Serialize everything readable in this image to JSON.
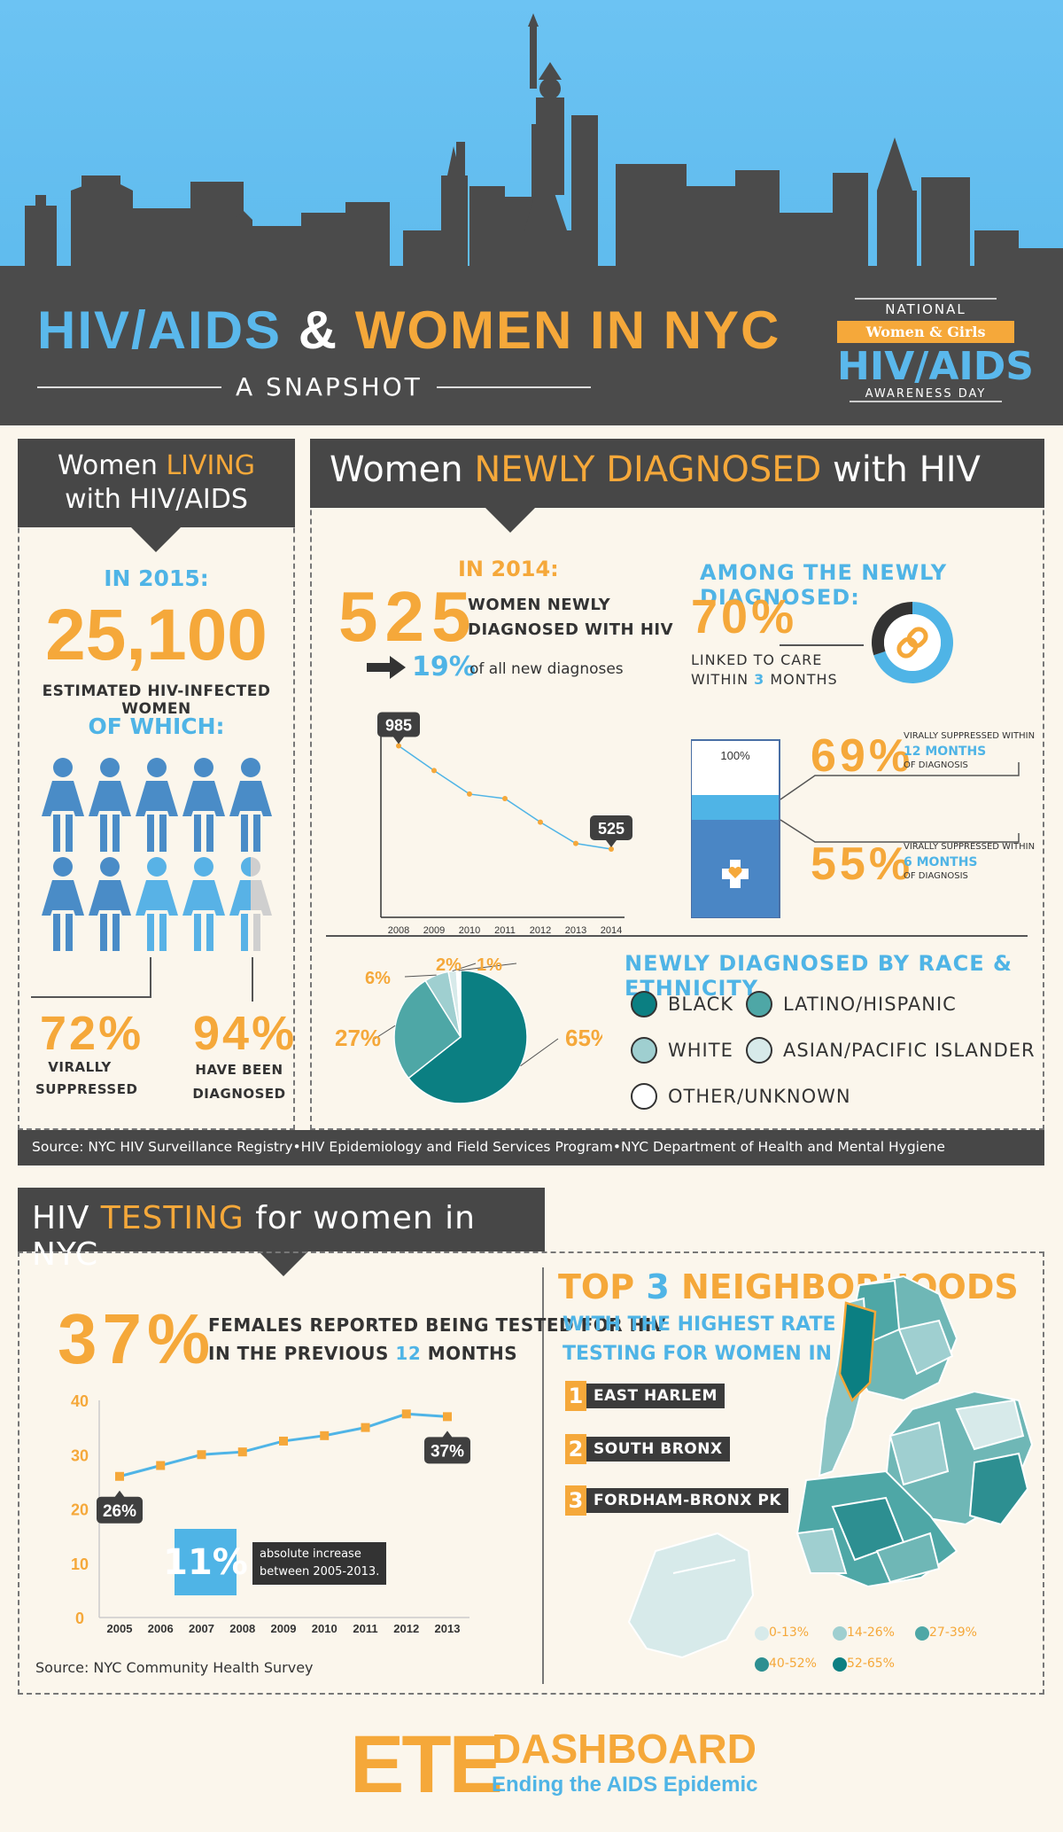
{
  "colors": {
    "orange": "#f5a83a",
    "blue": "#4fb4e6",
    "dark": "#474747",
    "teal_dark": "#0b7f82",
    "teal_mid": "#4ea7a6",
    "teal_light": "#9fcfd0",
    "teal_pale": "#d7eaea",
    "cream": "#fbf6ec"
  },
  "header": {
    "title_part1": "HIV/AIDS",
    "title_amp": "&",
    "title_part2": "WOMEN IN NYC",
    "subtitle": "A SNAPSHOT",
    "badge_national": "NATIONAL",
    "badge_ribbon": "Women & Girls",
    "badge_big": "HIV/AIDS",
    "badge_day": "AWARENESS DAY"
  },
  "living": {
    "title_a": "Women ",
    "title_b": "LIVING",
    "title_c": "with HIV/AIDS",
    "year_label": "IN 2015:",
    "total": "25,100",
    "total_desc": "ESTIMATED HIV-INFECTED WOMEN",
    "of_which": "OF WHICH:",
    "stat1_value": "72%",
    "stat1_label_a": "VIRALLY",
    "stat1_label_b": "SUPPRESSED",
    "stat2_value": "94%",
    "stat2_label_a": "HAVE BEEN",
    "stat2_label_b": "DIAGNOSED"
  },
  "newly": {
    "title_a": "Women ",
    "title_b": "NEWLY DIAGNOSED",
    "title_c": " with HIV",
    "year_label": "IN 2014:",
    "count": "525",
    "count_desc_a": "WOMEN NEWLY",
    "count_desc_b": "DIAGNOSED WITH HIV",
    "share_value": "19%",
    "share_label": "of all new diagnoses",
    "among_title": "AMONG THE NEWLY DIAGNOSED:",
    "linked_value": "70%",
    "linked_label_a": "LINKED TO CARE",
    "linked_label_b": "WITHIN ",
    "linked_label_num": "3",
    "linked_label_c": " MONTHS",
    "bar_top_label": "100%",
    "vs12_value": "69%",
    "vs12_label_a": "VIRALLY SUPPRESSED WITHIN",
    "vs12_label_b": "12 MONTHS",
    "vs12_label_c": "OF DIAGNOSIS",
    "vs6_value": "55%",
    "vs6_label_a": "VIRALLY SUPPRESSED WITHIN",
    "vs6_label_b": "6 MONTHS",
    "vs6_label_c": "OF DIAGNOSIS",
    "race_title": "NEWLY DIAGNOSED BY RACE & ETHNICITY",
    "race_legend": [
      "BLACK",
      "LATINO/HISPANIC",
      "WHITE",
      "ASIAN/PACIFIC ISLANDER",
      "OTHER/UNKNOWN"
    ],
    "source": "Source: NYC HIV Surveillance Registry•HIV Epidemiology and Field Services Program•NYC Department of Health and Mental Hygiene"
  },
  "testing": {
    "title_a": "HIV ",
    "title_b": "TESTING",
    "title_c": " for women in NYC",
    "pct": "37%",
    "pct_desc_a": "FEMALES REPORTED BEING TESTED FOR HIV",
    "pct_desc_b": "IN THE PREVIOUS ",
    "pct_desc_num": "12",
    "pct_desc_c": " MONTHS",
    "increase_value": "11%",
    "increase_label_a": "absolute increase",
    "increase_label_b": "between 2005-2013.",
    "source": "Source: NYC Community Health Survey",
    "hoods_title_a": "TOP ",
    "hoods_title_num": "3",
    "hoods_title_b": " NEIGHBORHOODS",
    "hoods_sub_a": "WITH THE HIGHEST RATE OF HIV",
    "hoods_sub_b": "TESTING FOR WOMEN IN NYC",
    "hoods": [
      {
        "n": "1",
        "label": "EAST HARLEM"
      },
      {
        "n": "2",
        "label": "SOUTH BRONX"
      },
      {
        "n": "3",
        "label": "FORDHAM-BRONX PK"
      }
    ],
    "map_legend": [
      "0-13%",
      "14-26%",
      "27-39%",
      "40-52%",
      "52-65%"
    ]
  },
  "footer": {
    "logo_ete": "ETE",
    "logo_dash": "DASHBOARD",
    "logo_tag": "Ending the AIDS Epidemic"
  },
  "chart_data": [
    {
      "type": "line",
      "x": [
        "2008",
        "2009",
        "2010",
        "2011",
        "2012",
        "2013",
        "2014"
      ],
      "series": [
        {
          "values": [
            985,
            875,
            770,
            750,
            645,
            550,
            525
          ]
        }
      ],
      "labels": {
        "first": "985",
        "last": "525"
      },
      "ylim": [
        300,
        1050
      ]
    },
    {
      "type": "pie",
      "labels": [
        "BLACK",
        "LATINO/HISPANIC",
        "WHITE",
        "ASIAN/PACIFIC ISLANDER",
        "OTHER/UNKNOWN"
      ],
      "values": [
        65,
        27,
        6,
        2,
        1
      ],
      "value_labels": [
        "65%",
        "27%",
        "6%",
        "2%",
        "1%"
      ]
    },
    {
      "type": "line",
      "x": [
        "2005",
        "2006",
        "2007",
        "2008",
        "2009",
        "2010",
        "2011",
        "2012",
        "2013"
      ],
      "series": [
        {
          "values": [
            26,
            28,
            30,
            30.5,
            32.5,
            33.5,
            35,
            37.5,
            37
          ]
        }
      ],
      "yticks": [
        "0",
        "10",
        "20",
        "30",
        "40"
      ],
      "ylim": [
        0,
        40
      ],
      "labels": {
        "first": "26%",
        "last": "37%"
      }
    },
    {
      "type": "donut",
      "values": [
        70,
        30
      ]
    },
    {
      "type": "bar",
      "values": [
        100,
        69,
        55
      ]
    }
  ]
}
